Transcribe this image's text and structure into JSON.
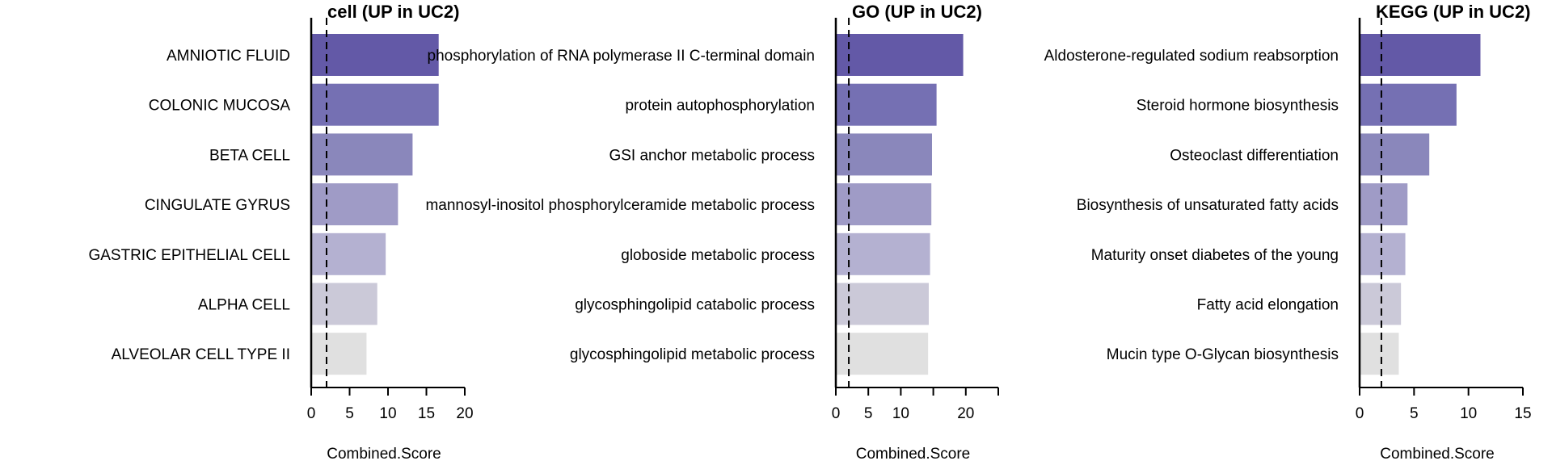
{
  "chart_data": [
    {
      "type": "bar",
      "orientation": "horizontal",
      "title": "cell (UP in UC2)",
      "xlabel": "Combined.Score",
      "xlim": [
        0,
        20
      ],
      "xticks": [
        "0",
        "5",
        "10",
        "15",
        "20"
      ],
      "reference_line": 2,
      "categories": [
        "AMNIOTIC FLUID",
        "COLONIC MUCOSA",
        "BETA CELL",
        "CINGULATE GYRUS",
        "GASTRIC EPITHELIAL CELL",
        "ALPHA CELL",
        "ALVEOLAR CELL TYPE II"
      ],
      "values": [
        16.6,
        16.6,
        13.2,
        11.3,
        9.7,
        8.6,
        7.2
      ]
    },
    {
      "type": "bar",
      "orientation": "horizontal",
      "title": "GO (UP in UC2)",
      "xlabel": "Combined.Score",
      "xlim": [
        0,
        25
      ],
      "xticks": [
        "0",
        "5",
        "10",
        "20"
      ],
      "reference_line": 2,
      "categories": [
        "phosphorylation of RNA polymerase II C-terminal domain",
        "protein autophosphorylation",
        "GSI anchor metabolic process",
        "mannosyl-inositol phosphorylceramide metabolic process",
        "globoside metabolic process",
        "glycosphingolipid catabolic process",
        "glycosphingolipid metabolic process"
      ],
      "values": [
        19.6,
        15.5,
        14.8,
        14.7,
        14.5,
        14.3,
        14.2
      ]
    },
    {
      "type": "bar",
      "orientation": "horizontal",
      "title": "KEGG (UP in UC2)",
      "xlabel": "Combined.Score",
      "xlim": [
        0,
        15
      ],
      "xticks": [
        "0",
        "5",
        "10",
        "15"
      ],
      "reference_line": 2,
      "categories": [
        "Aldosterone-regulated sodium reabsorption",
        "Steroid hormone biosynthesis",
        "Osteoclast differentiation",
        "Biosynthesis of unsaturated fatty acids",
        "Maturity onset diabetes of the young",
        "Fatty acid elongation",
        "Mucin type O-Glycan biosynthesis"
      ],
      "values": [
        11.1,
        8.9,
        6.4,
        4.4,
        4.2,
        3.8,
        3.6
      ]
    }
  ],
  "colors": [
    "#6359a7",
    "#7570b3",
    "#8a87bb",
    "#9f9bc6",
    "#b4b1d1",
    "#cbc9d8",
    "#e0e0e0"
  ]
}
